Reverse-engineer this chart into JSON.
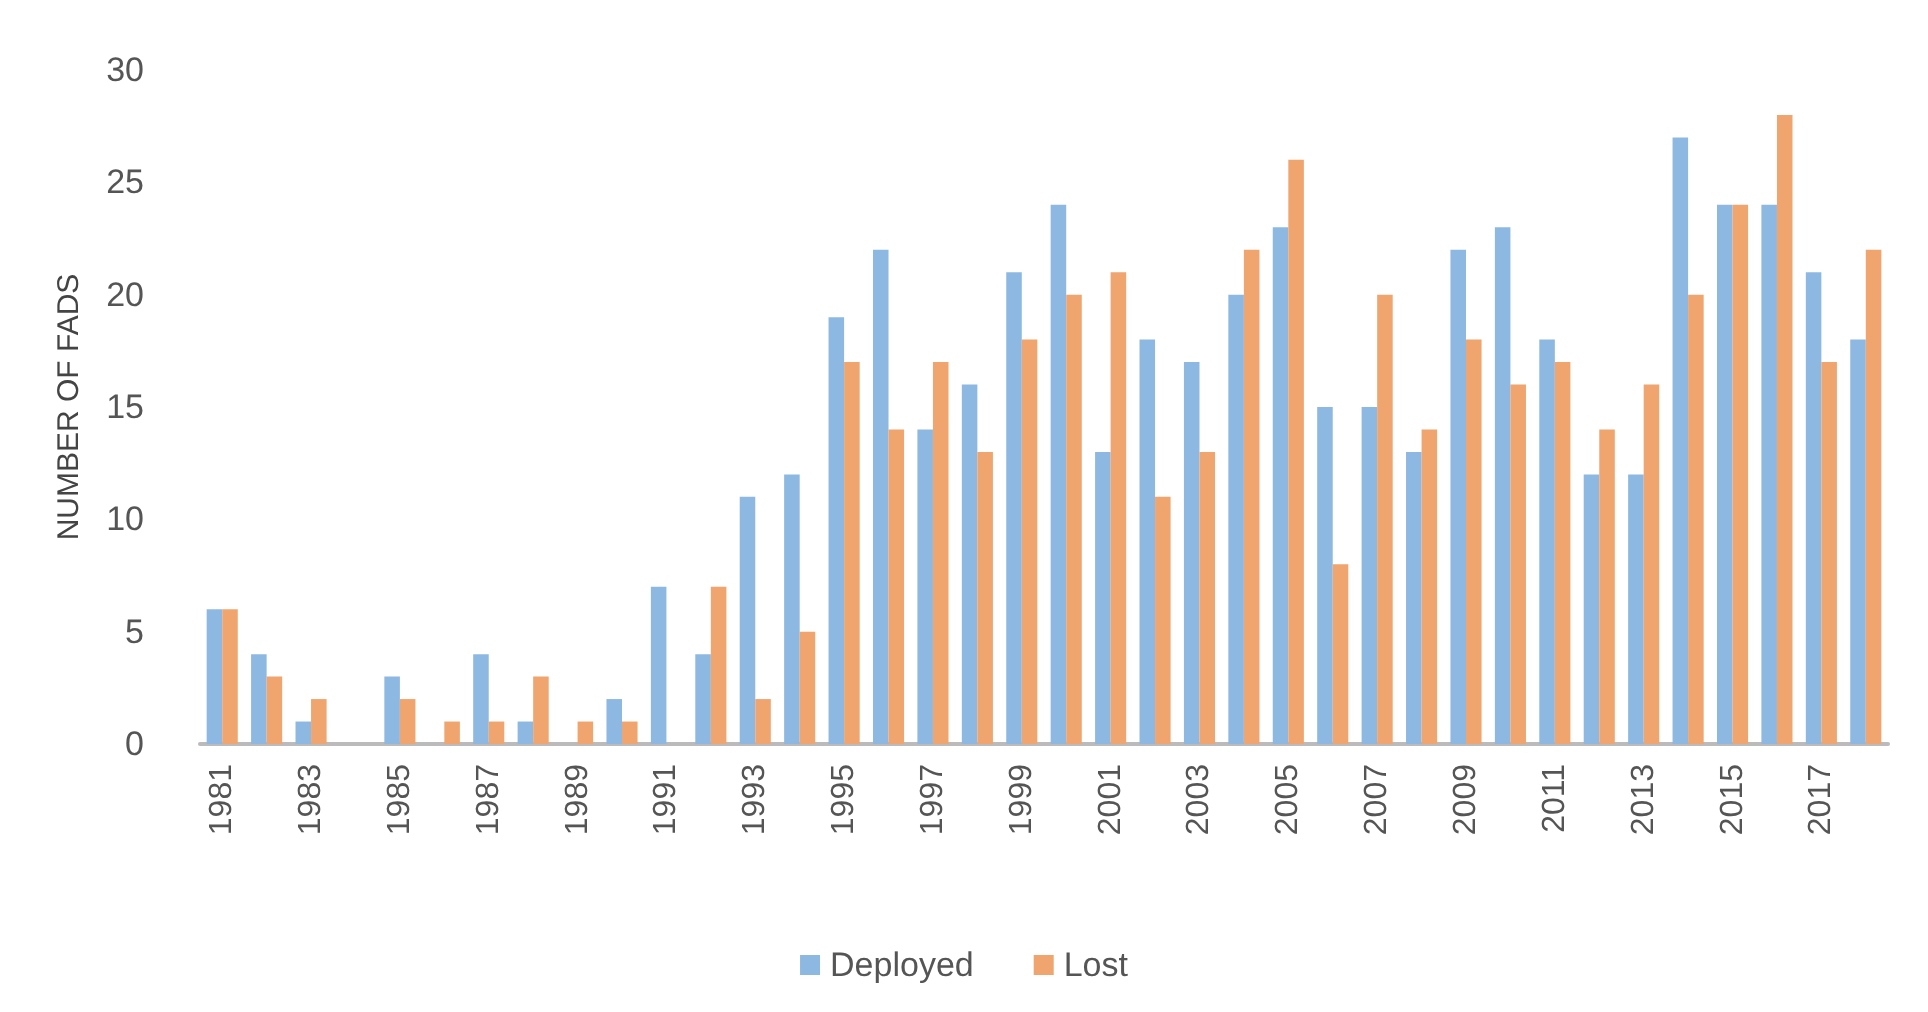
{
  "chart_data": {
    "type": "bar",
    "ylabel": "NUMBER OF FADS",
    "categories": [
      "1981",
      null,
      "1983",
      null,
      "1985",
      null,
      "1987",
      null,
      "1989",
      null,
      "1991",
      null,
      "1993",
      null,
      "1995",
      null,
      "1997",
      null,
      "1999",
      null,
      "2001",
      null,
      "2003",
      null,
      "2005",
      null,
      "2007",
      null,
      "2009",
      null,
      "2011",
      null,
      "2013",
      null,
      "2015",
      null,
      "2017",
      null
    ],
    "series": [
      {
        "name": "Deployed",
        "color": "#8db8e2",
        "values": [
          6,
          4,
          1,
          0,
          3,
          0,
          4,
          1,
          0,
          2,
          7,
          4,
          11,
          12,
          19,
          22,
          14,
          16,
          21,
          24,
          13,
          18,
          17,
          20,
          23,
          15,
          15,
          13,
          22,
          23,
          18,
          12,
          12,
          27,
          24,
          24,
          21,
          18
        ]
      },
      {
        "name": "Lost",
        "color": "#f0a46e",
        "values": [
          6,
          3,
          2,
          0,
          2,
          1,
          1,
          3,
          1,
          1,
          0,
          7,
          2,
          5,
          17,
          14,
          17,
          13,
          18,
          20,
          21,
          11,
          13,
          22,
          26,
          8,
          20,
          14,
          18,
          16,
          17,
          14,
          16,
          20,
          24,
          28,
          17,
          22
        ]
      }
    ],
    "ylim": [
      0,
      30
    ],
    "yticks": [
      0,
      5,
      10,
      15,
      20,
      25,
      30
    ],
    "grid": false,
    "legend": "bottom"
  }
}
